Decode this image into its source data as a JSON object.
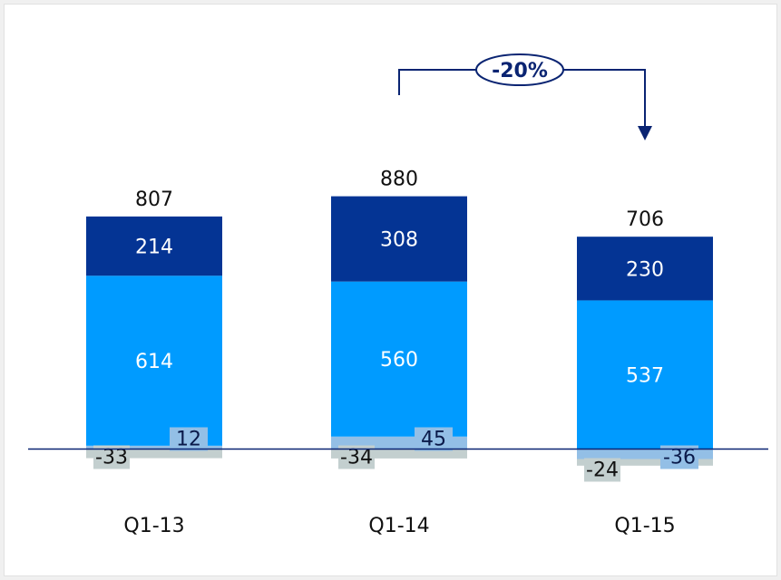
{
  "chart_data": {
    "type": "bar",
    "stacked": true,
    "categories": [
      "Q1-13",
      "Q1-14",
      "Q1-15"
    ],
    "series": [
      {
        "values": [
          614,
          560,
          537
        ],
        "color": "#009bff"
      },
      {
        "values": [
          214,
          308,
          230
        ],
        "color": "#043494"
      },
      {
        "values": [
          12,
          45,
          -36
        ],
        "color": "#93bfe6"
      },
      {
        "values": [
          -33,
          -34,
          -24
        ],
        "color": "#c3cfcf"
      }
    ],
    "totals": [
      807,
      880,
      706
    ],
    "title": "",
    "xlabel": "",
    "ylabel": "",
    "ylim": [
      -50,
      1000
    ],
    "grid": false,
    "legend": "none",
    "annotation": {
      "text": "-20%",
      "from": "Q1-14",
      "to": "Q1-15",
      "color": "#0a2472"
    }
  }
}
